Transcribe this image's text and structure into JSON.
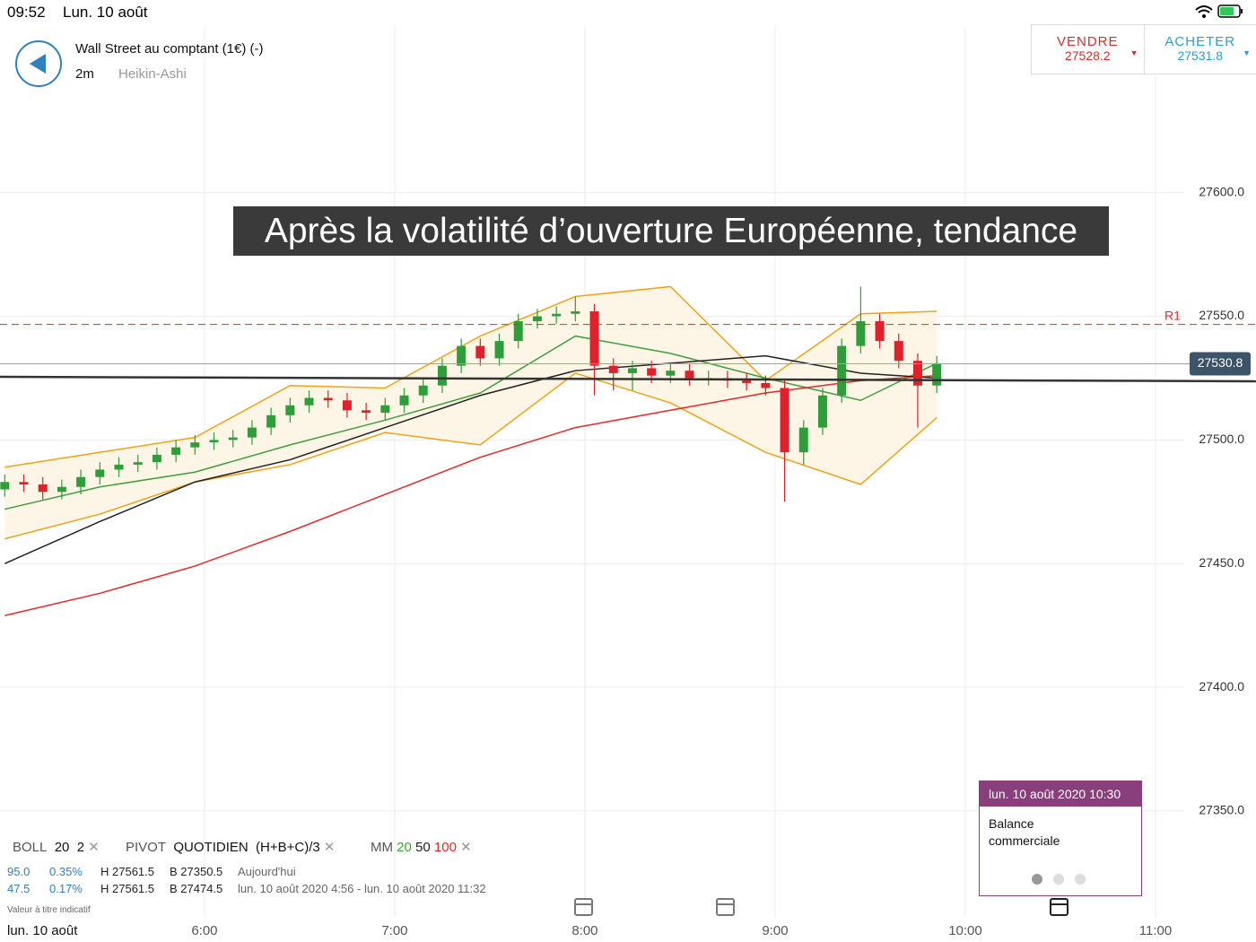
{
  "status_bar": {
    "time": "09:52",
    "date": "Lun. 10 août"
  },
  "header": {
    "title": "Wall Street au comptant (1€) (-)",
    "interval": "2m",
    "chart_style": "Heikin-Ashi"
  },
  "quote": {
    "sell_label": "VENDRE",
    "sell_price": "27528.2",
    "buy_label": "ACHETER",
    "buy_price": "27531.8"
  },
  "banner": "Après la volatilité d’ouverture Européenne, tendance",
  "chart_data": {
    "type": "candlestick",
    "xlim": [
      295.5,
      691.7
    ],
    "ylim": [
      27297,
      27667
    ],
    "xticks": [
      {
        "value": 360,
        "label": "6:00"
      },
      {
        "value": 420,
        "label": "7:00"
      },
      {
        "value": 480,
        "label": "8:00"
      },
      {
        "value": 540,
        "label": "9:00"
      },
      {
        "value": 600,
        "label": "10:00"
      },
      {
        "value": 660,
        "label": "11:00"
      }
    ],
    "yticks": [
      {
        "value": 27350,
        "label": "27350.0"
      },
      {
        "value": 27400,
        "label": "27400.0"
      },
      {
        "value": 27450,
        "label": "27450.0"
      },
      {
        "value": 27500,
        "label": "27500.0"
      },
      {
        "value": 27550,
        "label": "27550.0"
      },
      {
        "value": 27600,
        "label": "27600.0"
      }
    ],
    "grid": true,
    "up_color": "#2e9e3a",
    "down_color": "#e0202a",
    "x": [
      297,
      303,
      309,
      315,
      321,
      327,
      333,
      339,
      345,
      351,
      357,
      363,
      369,
      375,
      381,
      387,
      393,
      399,
      405,
      411,
      417,
      423,
      429,
      435,
      441,
      447,
      453,
      459,
      465,
      471,
      477,
      483,
      489,
      495,
      501,
      507,
      513,
      519,
      525,
      531,
      537,
      543,
      549,
      555,
      561,
      567,
      573,
      579,
      585,
      591
    ],
    "open": [
      27480,
      27483,
      27482,
      27479,
      27481,
      27485,
      27488,
      27490,
      27491,
      27494,
      27497,
      27499,
      27500,
      27501,
      27505,
      27510,
      27514,
      27517,
      27516,
      27512,
      27511,
      27514,
      27518,
      27522,
      27530,
      27538,
      27533,
      27540,
      27548,
      27550,
      27551,
      27552,
      27530,
      27527,
      27529,
      27526,
      27528,
      27525,
      27525,
      27524,
      27523,
      27521,
      27495,
      27505,
      27518,
      27538,
      27548,
      27540,
      27532,
      27522
    ],
    "high": [
      27486,
      27486,
      27485,
      27484,
      27488,
      27491,
      27493,
      27494,
      27497,
      27500,
      27502,
      27503,
      27504,
      27508,
      27513,
      27517,
      27520,
      27520,
      27519,
      27515,
      27517,
      27521,
      27525,
      27533,
      27541,
      27541,
      27543,
      27551,
      27553,
      27554,
      27558,
      27555,
      27533,
      27532,
      27532,
      27531,
      27531,
      27528,
      27528,
      27527,
      27526,
      27524,
      27508,
      27521,
      27541,
      27562,
      27551,
      27543,
      27535,
      27534
    ],
    "low": [
      27477,
      27479,
      27476,
      27476,
      27478,
      27482,
      27485,
      27487,
      27488,
      27491,
      27494,
      27496,
      27497,
      27498,
      27502,
      27507,
      27511,
      27513,
      27509,
      27508,
      27508,
      27511,
      27515,
      27519,
      27527,
      27530,
      27530,
      27537,
      27545,
      27547,
      27548,
      27518,
      27520,
      27520,
      27523,
      27523,
      27522,
      27522,
      27521,
      27520,
      27518,
      27475,
      27490,
      27502,
      27515,
      27535,
      27537,
      27529,
      27505,
      27519
    ],
    "close": [
      27483,
      27482,
      27479,
      27481,
      27485,
      27488,
      27490,
      27491,
      27494,
      27497,
      27499,
      27500,
      27501,
      27505,
      27510,
      27514,
      27517,
      27516,
      27512,
      27511,
      27514,
      27518,
      27522,
      27530,
      27538,
      27533,
      27540,
      27548,
      27550,
      27551,
      27552,
      27530,
      27527,
      27529,
      27526,
      27528,
      27525,
      27525,
      27524,
      27523,
      27521,
      27495,
      27505,
      27518,
      27538,
      27548,
      27540,
      27532,
      27522,
      27531
    ],
    "line_x": [
      297,
      327,
      357,
      387,
      417,
      447,
      477,
      507,
      537,
      567,
      591
    ],
    "moving_averages": {
      "label": "MM",
      "series": [
        {
          "name": "20",
          "color": "#3f9f3f",
          "values": [
            27472,
            27481,
            27487,
            27498,
            27508,
            27519,
            27542,
            27535,
            27525,
            27516,
            27531
          ]
        },
        {
          "name": "50",
          "color": "#222222",
          "values": [
            27450,
            27467,
            27483,
            27492,
            27505,
            27518,
            27528,
            27531,
            27534,
            27527,
            27525
          ]
        },
        {
          "name": "100",
          "color": "#e02a2a",
          "values": [
            27429,
            27438,
            27449,
            27463,
            27478,
            27493,
            27505,
            27512,
            27519,
            27524,
            27526
          ]
        }
      ]
    },
    "bollinger": {
      "label": "BOLL",
      "period": "20",
      "deviation": "2",
      "color": "#f0a21a",
      "fill": "#fdf6e6",
      "upper": [
        27489,
        27495,
        27501,
        27522,
        27521,
        27542,
        27558,
        27562,
        27524,
        27551,
        27552
      ],
      "lower": [
        27460,
        27470,
        27483,
        27490,
        27503,
        27498,
        27527,
        27515,
        27495,
        27482,
        27509
      ]
    },
    "pivot": {
      "label": "PIVOT",
      "period": "QUOTIDIEN",
      "formula": "(H+B+C)/3",
      "level_name": "R1",
      "level": 27546.7,
      "color": "#e02a2a"
    },
    "current_price": {
      "value": 27530.8,
      "label": "27530.8"
    },
    "x_start_label": "lun. 10 août"
  },
  "info": {
    "rows": [
      [
        "95.0",
        "0.35%",
        "H 27561.5",
        "B 27350.5",
        "Aujourd'hui"
      ],
      [
        "47.5",
        "0.17%",
        "H 27561.5",
        "B 27474.5",
        "lun. 10 août 2020 4:56 - lun. 10 août 2020 11:32"
      ]
    ],
    "disclaimer": "Valeur à titre indicatif"
  },
  "event": {
    "datetime": "lun. 10 août 2020 10:30",
    "title": "Balance commerciale"
  }
}
